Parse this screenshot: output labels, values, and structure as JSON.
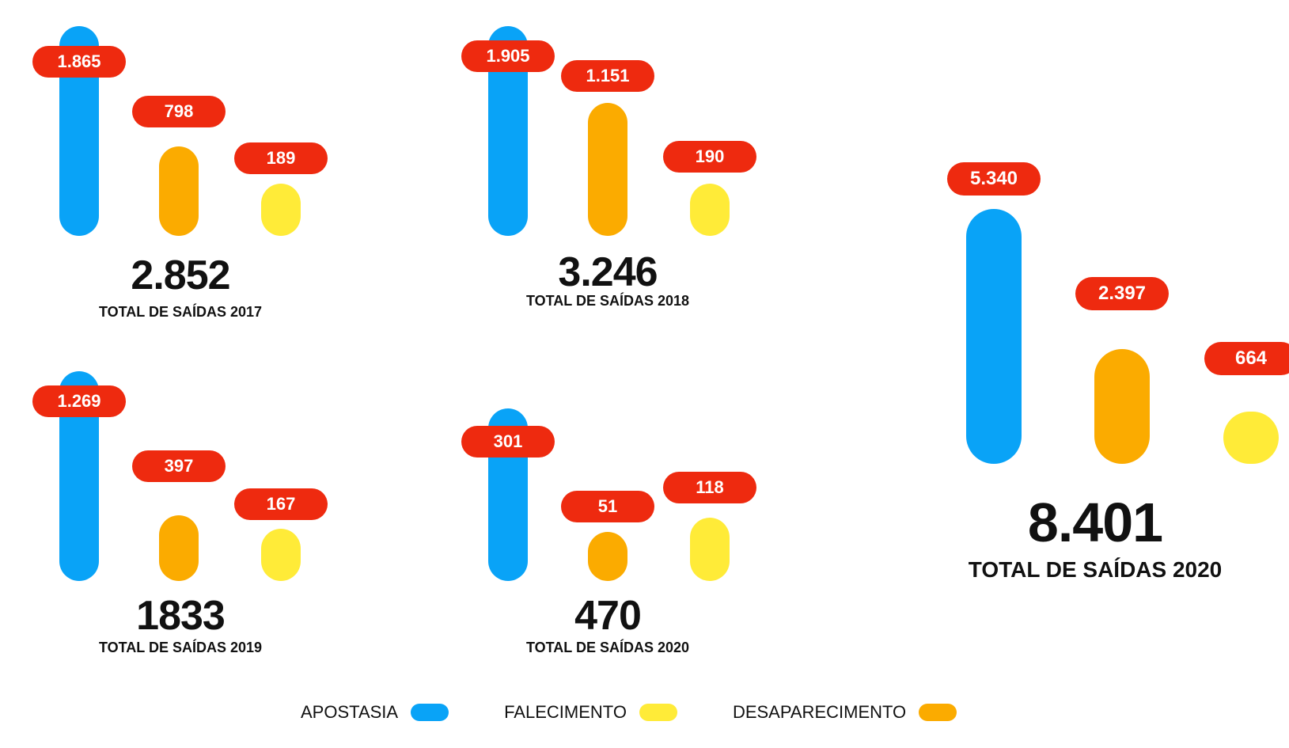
{
  "chart_data": [
    {
      "type": "bar",
      "categories": [
        "Apostasia",
        "Desaparecimento",
        "Falecimento"
      ],
      "values": [
        1865,
        798,
        189
      ],
      "total": "2.852",
      "caption": "TOTAL DE SAÍDAS 2017",
      "labels": [
        "1.865",
        "798",
        "189"
      ]
    },
    {
      "type": "bar",
      "categories": [
        "Apostasia",
        "Desaparecimento",
        "Falecimento"
      ],
      "values": [
        1905,
        1151,
        190
      ],
      "total": "3.246",
      "caption": "TOTAL DE SAÍDAS 2018",
      "labels": [
        "1.905",
        "1.151",
        "190"
      ]
    },
    {
      "type": "bar",
      "categories": [
        "Apostasia",
        "Desaparecimento",
        "Falecimento"
      ],
      "values": [
        1269,
        397,
        167
      ],
      "total": "1833",
      "caption": "TOTAL DE SAÍDAS 2019",
      "labels": [
        "1.269",
        "397",
        "167"
      ]
    },
    {
      "type": "bar",
      "categories": [
        "Apostasia",
        "Desaparecimento",
        "Falecimento"
      ],
      "values": [
        301,
        51,
        118
      ],
      "total": "470",
      "caption": "TOTAL DE SAÍDAS 2020",
      "labels": [
        "301",
        "51",
        "118"
      ]
    },
    {
      "type": "bar",
      "categories": [
        "Apostasia",
        "Desaparecimento",
        "Falecimento"
      ],
      "values": [
        5340,
        2397,
        664
      ],
      "total": "8.401",
      "caption": "TOTAL DE SAÍDAS 2020",
      "labels": [
        "5.340",
        "2.397",
        "664"
      ]
    }
  ],
  "colors": {
    "apostasia": "#09a3f7",
    "desaparecimento": "#fbab00",
    "falecimento": "#ffeb38",
    "label_bg": "#ee2a0f"
  },
  "legend": [
    {
      "label": "APOSTASIA",
      "color": "#09a3f7"
    },
    {
      "label": "FALECIMENTO",
      "color": "#ffeb38"
    },
    {
      "label": "DESAPARECIMENTO",
      "color": "#fbab00"
    }
  ]
}
